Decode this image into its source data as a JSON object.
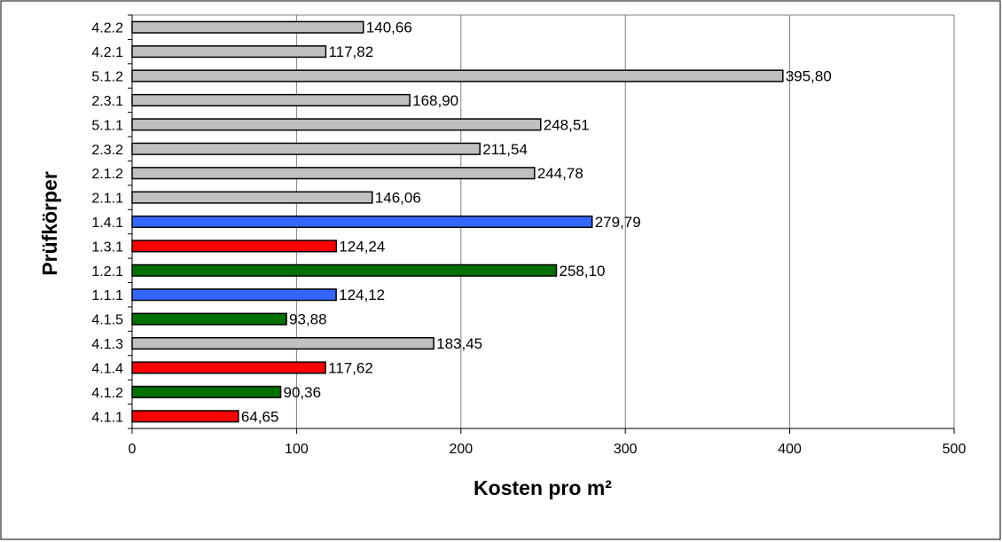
{
  "chart_data": {
    "type": "bar",
    "orientation": "horizontal",
    "title": "",
    "xlabel": "Kosten pro m²",
    "ylabel": "Prüfkörper",
    "xlim": [
      0,
      500
    ],
    "x_ticks": [
      "0",
      "100",
      "200",
      "300",
      "400",
      "500"
    ],
    "grid": "vertical",
    "legend": "none",
    "categories": [
      "4.1.1",
      "4.1.2",
      "4.1.4",
      "4.1.3",
      "4.1.5",
      "1.1.1",
      "1.2.1",
      "1.3.1",
      "1.4.1",
      "2.1.1",
      "2.1.2",
      "2.3.2",
      "5.1.1",
      "2.3.1",
      "5.1.2",
      "4.2.1",
      "4.2.2"
    ],
    "values": [
      64.65,
      90.36,
      117.62,
      183.45,
      93.88,
      124.12,
      258.1,
      124.24,
      279.79,
      146.06,
      244.78,
      211.54,
      248.51,
      168.9,
      395.8,
      117.82,
      140.66
    ],
    "value_labels": [
      "64,65",
      "90,36",
      "117,62",
      "183,45",
      "93,88",
      "124,12",
      "258,10",
      "124,24",
      "279,79",
      "146,06",
      "244,78",
      "211,54",
      "248,51",
      "168,90",
      "395,80",
      "117,82",
      "140,66"
    ],
    "bar_colors": [
      "#ff0000",
      "#007000",
      "#ff0000",
      "#c0c0c0",
      "#007000",
      "#3366ff",
      "#007000",
      "#ff0000",
      "#3366ff",
      "#c0c0c0",
      "#c0c0c0",
      "#c0c0c0",
      "#c0c0c0",
      "#c0c0c0",
      "#c0c0c0",
      "#c0c0c0",
      "#c0c0c0"
    ]
  }
}
